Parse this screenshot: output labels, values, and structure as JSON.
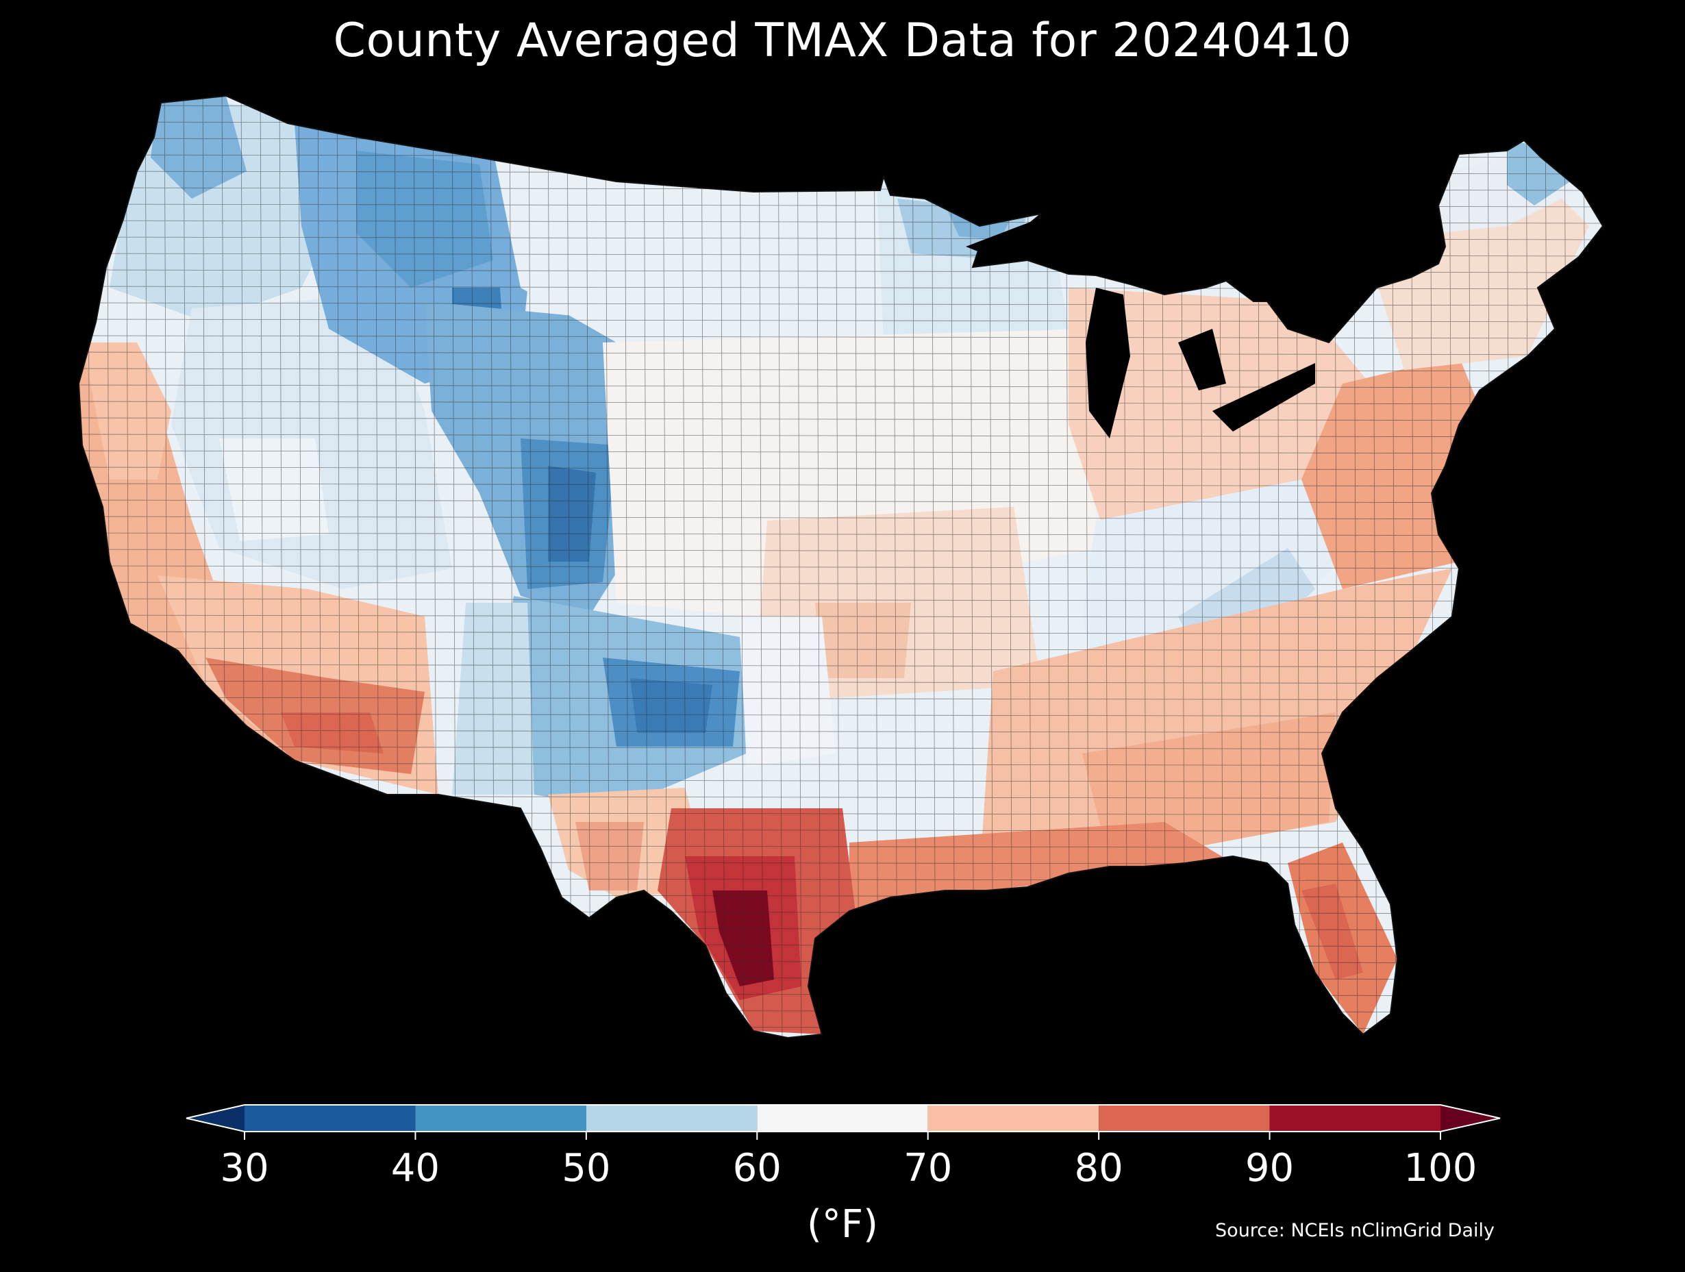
{
  "title": "County Averaged TMAX Data for 20240410",
  "colorbar": {
    "unit_label": "(°F)",
    "ticks": [
      "30",
      "40",
      "50",
      "60",
      "70",
      "80",
      "90",
      "100"
    ],
    "bins": [
      {
        "range": [
          30,
          40
        ],
        "color": "#1b5a9c"
      },
      {
        "range": [
          40,
          50
        ],
        "color": "#4393c3"
      },
      {
        "range": [
          50,
          60
        ],
        "color": "#b4d6e8"
      },
      {
        "range": [
          60,
          70
        ],
        "color": "#f5f5f5"
      },
      {
        "range": [
          70,
          80
        ],
        "color": "#f9bfa2"
      },
      {
        "range": [
          80,
          90
        ],
        "color": "#db6651"
      },
      {
        "range": [
          90,
          100
        ],
        "color": "#9b1026"
      }
    ],
    "extend_low_color": "#0a3067",
    "extend_high_color": "#67001f"
  },
  "source": "Source: NCEIs nClimGrid Daily",
  "map": {
    "region": "Contiguous United States",
    "background": "#000000",
    "county_border_color": "#222222",
    "regions": [
      {
        "name": "Pacific Northwest coast",
        "color": "#c8dfee"
      },
      {
        "name": "Northern Rockies",
        "color": "#76addb"
      },
      {
        "name": "Wyoming / Colorado Rockies",
        "color": "#4f90c4"
      },
      {
        "name": "Great Basin",
        "color": "#dde9f2"
      },
      {
        "name": "California Central Valley",
        "color": "#f4b597"
      },
      {
        "name": "Southern California",
        "color": "#f7c4a9"
      },
      {
        "name": "Southwest deserts",
        "color": "#e27f63"
      },
      {
        "name": "Southern Rockies / New Mexico",
        "color": "#66a4d2"
      },
      {
        "name": "Northern Plains",
        "color": "#e9f1f7"
      },
      {
        "name": "Upper Midwest",
        "color": "#dbe9f3"
      },
      {
        "name": "Lake Superior region",
        "color": "#7fb3d9"
      },
      {
        "name": "Central Plains",
        "color": "#f5f2f0"
      },
      {
        "name": "Missouri / Arkansas",
        "color": "#f6d3c1"
      },
      {
        "name": "Appalachians",
        "color": "#c7ddee"
      },
      {
        "name": "Great Lakes / Ohio Valley",
        "color": "#f7d1bd"
      },
      {
        "name": "Mid-Atlantic",
        "color": "#f2a584"
      },
      {
        "name": "New England",
        "color": "#f5ddd0"
      },
      {
        "name": "Northern Maine",
        "color": "#94c0e0"
      },
      {
        "name": "Southeast",
        "color": "#f2ae8f"
      },
      {
        "name": "Gulf Coast",
        "color": "#e98a6c"
      },
      {
        "name": "Florida",
        "color": "#e67e60"
      },
      {
        "name": "Texas Panhandle",
        "color": "#e6eff6"
      },
      {
        "name": "West Texas",
        "color": "#f6c8ae"
      },
      {
        "name": "South Texas",
        "color": "#c3333a"
      },
      {
        "name": "Rio Grande Valley",
        "color": "#7b0a20"
      }
    ]
  }
}
